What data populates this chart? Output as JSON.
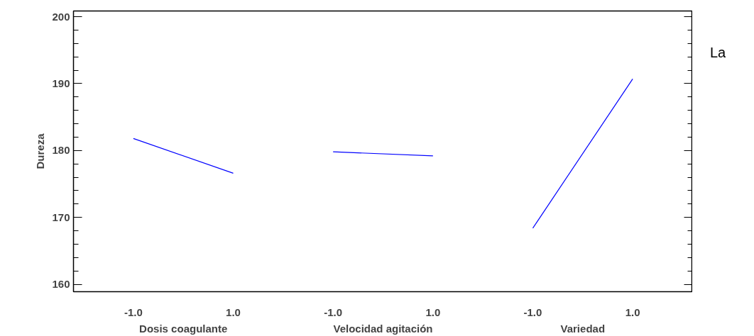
{
  "chart_data": {
    "type": "line",
    "ylabel": "Dureza",
    "categories": [
      "-1.0",
      "1.0",
      "-1.0",
      "1.0",
      "-1.0",
      "1.0"
    ],
    "ylim": [
      158.9,
      200.85
    ],
    "yticks": [
      160,
      170,
      180,
      190,
      200
    ],
    "series": [
      {
        "color": "#0000ff",
        "values": [
          181.8,
          176.6,
          null,
          null,
          null,
          null
        ]
      },
      {
        "color": "#0000ff",
        "values": [
          null,
          null,
          179.8,
          179.2,
          null,
          null
        ]
      },
      {
        "color": "#0000ff",
        "values": [
          null,
          null,
          null,
          null,
          168.4,
          190.7
        ]
      }
    ],
    "annotations": [
      "Dosis coagulante",
      "Velocidad agitación",
      "Variedad",
      "La"
    ],
    "grid": false
  }
}
